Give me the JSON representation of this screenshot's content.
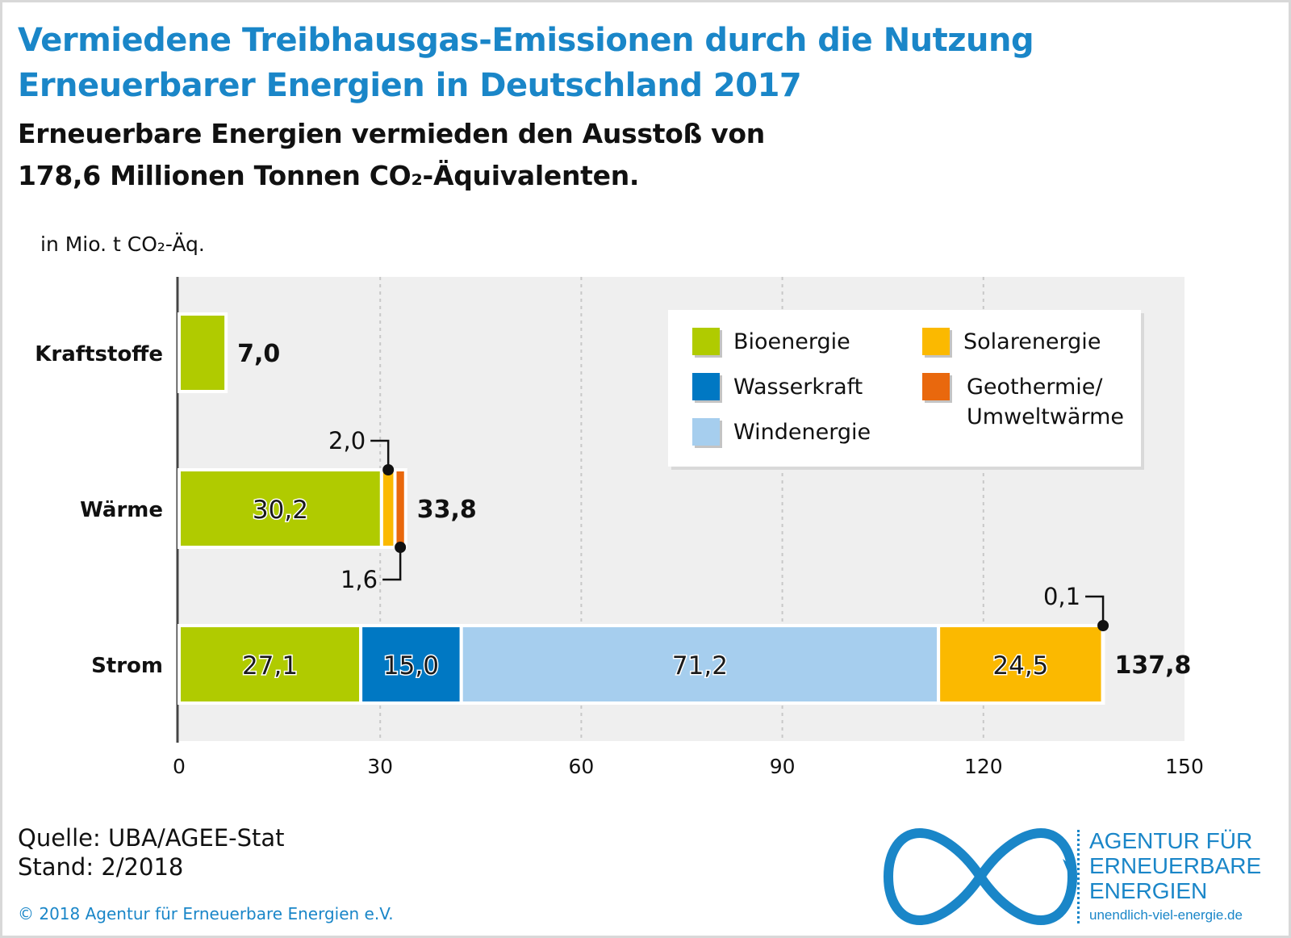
{
  "title_line1": "Vermiedene Treibhausgas-Emissionen durch die Nutzung",
  "title_line2": "Erneuerbarer Energien in Deutschland 2017",
  "subtitle_line1": "Erneuerbare Energien vermieden den Ausstoß von",
  "subtitle_line2": "178,6 Millionen Tonnen CO₂-Äquivalenten.",
  "unit_label": "in Mio. t CO₂-Äq.",
  "source": "Quelle: UBA/AGEE-Stat",
  "stand": "Stand: 2/2018",
  "copyright": "© 2018 Agentur für Erneuerbare Energien e.V.",
  "logo": {
    "line1": "AGENTUR FÜR",
    "line2": "ERNEUERBARE",
    "line3": "ENERGIEN",
    "url": "unendlich-viel-energie.de"
  },
  "chart_data": {
    "type": "bar",
    "orientation": "horizontal",
    "stacked": true,
    "categories": [
      "Kraftstoffe",
      "Wärme",
      "Strom"
    ],
    "series": [
      {
        "name": "Bioenergie",
        "color": "#b0cb00",
        "values": [
          7.0,
          30.2,
          27.1
        ]
      },
      {
        "name": "Wasserkraft",
        "color": "#0078c3",
        "values": [
          0,
          0,
          15.0
        ]
      },
      {
        "name": "Windenergie",
        "color": "#a6ceee",
        "values": [
          0,
          0,
          71.2
        ]
      },
      {
        "name": "Solarenergie",
        "color": "#fbb900",
        "values": [
          0,
          2.0,
          24.5
        ]
      },
      {
        "name": "Geothermie/ Umweltwärme",
        "color": "#e9680d",
        "values": [
          0,
          1.6,
          0.1
        ]
      }
    ],
    "series_labels": [
      [
        "",
        "30,2",
        "27,1"
      ],
      [
        "",
        "",
        "15,0"
      ],
      [
        "",
        "",
        "71,2"
      ],
      [
        "",
        "2,0",
        "24,5"
      ],
      [
        "",
        "1,6",
        "0,1"
      ]
    ],
    "totals": [
      7.0,
      33.8,
      137.8
    ],
    "total_labels": [
      "7,0",
      "33,8",
      "137,8"
    ],
    "xlim": [
      0,
      150
    ],
    "xticks": [
      0,
      30,
      60,
      90,
      120,
      150
    ],
    "grid": true,
    "legend_position": "top-right"
  }
}
